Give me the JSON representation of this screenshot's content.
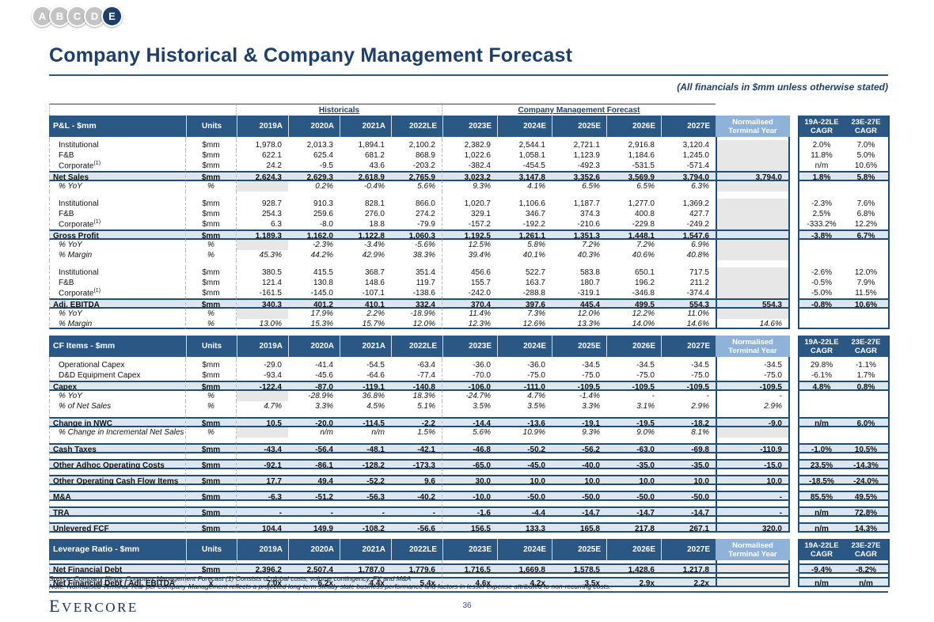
{
  "badges": {
    "items": [
      "A",
      "B",
      "C",
      "D",
      "E"
    ],
    "active": "E"
  },
  "page": {
    "title": "Company Historical & Company Management Forecast",
    "subtitle": "(All financials in $mm unless otherwise stated)",
    "source_note": "Source: Company filings, Company Management Forecast (1) Consists of global costs, volume contingency, FX and M&A",
    "note": "Note: Normalised Terminal Year per Company Management reflects a projected long-term steady state business performance and factors in lesser expense attributed to non-recurring costs.",
    "logo_text": "Evercore",
    "page_number": "36"
  },
  "colors": {
    "header_navy": "#2A5784",
    "border_navy": "#1F4E79",
    "title_navy": "#1C3F6E",
    "subtotal_blue": "#DCE6F1",
    "terminal_year_header_blue": "#8FB2D9",
    "empty_cell_gray": "#E7E7E7"
  },
  "table": {
    "group_headers": {
      "historicals": "Historicals",
      "forecast": "Company Management Forecast"
    },
    "year_columns": [
      "2019A",
      "2020A",
      "2021A",
      "2022LE",
      "2023E",
      "2024E",
      "2025E",
      "2026E",
      "2027E"
    ],
    "units_header": "Units",
    "ty_header": "Normalised\nTerminal Year",
    "cagr_headers": [
      "19A-22LE\nCAGR",
      "23E-27E\nCAGR"
    ],
    "sections": [
      {
        "title": "P&L - $mm",
        "rows": [
          {
            "label": "Institutional",
            "units": "$mm",
            "style": "detail",
            "gap": 4,
            "values": [
              "1,978.0",
              "2,013.3",
              "1,894.1",
              "2,100.2",
              "2,382.9",
              "2,544.1",
              "2,721.1",
              "2,916.8",
              "3,120.4"
            ],
            "ty": "",
            "ty_gray": true,
            "cagr": [
              "2.0%",
              "7.0%"
            ]
          },
          {
            "label": "F&B",
            "units": "$mm",
            "style": "detail",
            "values": [
              "622.1",
              "625.4",
              "681.2",
              "868.9",
              "1,022.6",
              "1,058.1",
              "1,123.9",
              "1,184.6",
              "1,245.0"
            ],
            "ty": "",
            "ty_gray": true,
            "cagr": [
              "11.8%",
              "5.0%"
            ]
          },
          {
            "label": "Corporate",
            "sup": "(1)",
            "units": "$mm",
            "style": "detail",
            "values": [
              "24.2",
              "-9.5",
              "43.6",
              "-203.2",
              "-382.4",
              "-454.5",
              "-492.3",
              "-531.5",
              "-571.4"
            ],
            "ty": "",
            "ty_gray": true,
            "cagr": [
              "n/m",
              "10.6%"
            ]
          },
          {
            "label": "Net Sales",
            "units": "$mm",
            "style": "total",
            "values": [
              "2,624.3",
              "2,629.3",
              "2,618.9",
              "2,765.9",
              "3,023.2",
              "3,147.8",
              "3,352.6",
              "3,569.9",
              "3,794.0"
            ],
            "ty": "3,794.0",
            "cagr": [
              "1.8%",
              "5.8%"
            ]
          },
          {
            "label": "% YoY",
            "units": "%",
            "style": "pct",
            "values": [
              "",
              "0.2%",
              "-0.4%",
              "5.6%",
              "9.3%",
              "4.1%",
              "6.5%",
              "6.5%",
              "6.3%"
            ],
            "ty": "",
            "ty_gray": true,
            "cagr": [
              "",
              ""
            ]
          },
          {
            "label": "Institutional",
            "units": "$mm",
            "style": "detail",
            "gap": 9,
            "values": [
              "928.7",
              "910.3",
              "828.1",
              "866.0",
              "1,020.7",
              "1,106.6",
              "1,187.7",
              "1,277.0",
              "1,369.2"
            ],
            "ty": "",
            "ty_gray": true,
            "cagr": [
              "-2.3%",
              "7.6%"
            ]
          },
          {
            "label": "F&B",
            "units": "$mm",
            "style": "detail",
            "values": [
              "254.3",
              "259.6",
              "276.0",
              "274.2",
              "329.1",
              "346.7",
              "374.3",
              "400.8",
              "427.7"
            ],
            "ty": "",
            "ty_gray": true,
            "cagr": [
              "2.5%",
              "6.8%"
            ]
          },
          {
            "label": "Corporate",
            "sup": "(1)",
            "units": "$mm",
            "style": "detail",
            "values": [
              "6.3",
              "-8.0",
              "18.8",
              "-79.9",
              "-157.2",
              "-192.2",
              "-210.6",
              "-229.8",
              "-249.2"
            ],
            "ty": "",
            "ty_gray": true,
            "cagr": [
              "-333.2%",
              "12.2%"
            ]
          },
          {
            "label": "Gross Profit",
            "units": "$mm",
            "style": "total",
            "values": [
              "1,189.3",
              "1,162.0",
              "1,122.8",
              "1,060.3",
              "1,192.5",
              "1,261.1",
              "1,351.3",
              "1,448.1",
              "1,547.6"
            ],
            "ty": "",
            "cagr": [
              "-3.8%",
              "6.7%"
            ]
          },
          {
            "label": "% YoY",
            "units": "%",
            "style": "pct",
            "values": [
              "",
              "-2.3%",
              "-3.4%",
              "-5.6%",
              "12.5%",
              "5.8%",
              "7.2%",
              "7.2%",
              "6.9%"
            ],
            "ty": "",
            "ty_gray": true,
            "cagr": [
              "",
              ""
            ]
          },
          {
            "label": "% Margin",
            "units": "%",
            "style": "pct",
            "values": [
              "45.3%",
              "44.2%",
              "42.9%",
              "38.3%",
              "39.4%",
              "40.1%",
              "40.3%",
              "40.6%",
              "40.8%"
            ],
            "ty": "",
            "ty_gray": true,
            "cagr": [
              "",
              ""
            ]
          },
          {
            "label": "Institutional",
            "units": "$mm",
            "style": "detail",
            "gap": 9,
            "values": [
              "380.5",
              "415.5",
              "368.7",
              "351.4",
              "456.6",
              "522.7",
              "583.8",
              "650.1",
              "717.5"
            ],
            "ty": "",
            "ty_gray": true,
            "cagr": [
              "-2.6%",
              "12.0%"
            ]
          },
          {
            "label": "F&B",
            "units": "$mm",
            "style": "detail",
            "values": [
              "121.4",
              "130.8",
              "148.6",
              "119.7",
              "155.7",
              "163.7",
              "180.7",
              "196.2",
              "211.2"
            ],
            "ty": "",
            "ty_gray": true,
            "cagr": [
              "-0.5%",
              "7.9%"
            ]
          },
          {
            "label": "Corporate",
            "sup": "(1)",
            "units": "$mm",
            "style": "detail",
            "values": [
              "-161.5",
              "-145.0",
              "-107.1",
              "-138.6",
              "-242.0",
              "-288.8",
              "-319.1",
              "-346.8",
              "-374.4"
            ],
            "ty": "",
            "ty_gray": true,
            "cagr": [
              "-5.0%",
              "11.5%"
            ]
          },
          {
            "label": "Adj. EBITDA",
            "units": "$mm",
            "style": "total",
            "values": [
              "340.3",
              "401.2",
              "410.1",
              "332.4",
              "370.4",
              "397.6",
              "445.4",
              "499.5",
              "554.3"
            ],
            "ty": "554.3",
            "cagr": [
              "-0.8%",
              "10.6%"
            ]
          },
          {
            "label": "% YoY",
            "units": "%",
            "style": "pct",
            "values": [
              "",
              "17.9%",
              "2.2%",
              "-18.9%",
              "11.4%",
              "7.3%",
              "12.0%",
              "12.2%",
              "11.0%"
            ],
            "ty": "",
            "ty_gray": true,
            "cagr": [
              "",
              ""
            ]
          },
          {
            "label": "% Margin",
            "units": "%",
            "style": "pct",
            "section_end": true,
            "values": [
              "13.0%",
              "15.3%",
              "15.7%",
              "12.0%",
              "12.3%",
              "12.6%",
              "13.3%",
              "14.0%",
              "14.6%"
            ],
            "ty": "14.6%",
            "cagr": [
              "",
              ""
            ]
          }
        ]
      },
      {
        "title": "CF Items - $mm",
        "rows": [
          {
            "label": "Operational Capex",
            "units": "$mm",
            "style": "detail",
            "gap": 4,
            "values": [
              "-29.0",
              "-41.4",
              "-54.5",
              "-63.4",
              "-36.0",
              "-36.0",
              "-34.5",
              "-34.5",
              "-34.5"
            ],
            "ty": "-34.5",
            "cagr": [
              "29.8%",
              "-1.1%"
            ]
          },
          {
            "label": "D&D Equipment Capex",
            "units": "$mm",
            "style": "detail",
            "values": [
              "-93.4",
              "-45.6",
              "-64.6",
              "-77.4",
              "-70.0",
              "-75.0",
              "-75.0",
              "-75.0",
              "-75.0"
            ],
            "ty": "-75.0",
            "cagr": [
              "-6.1%",
              "1.7%"
            ]
          },
          {
            "label": "Capex",
            "units": "$mm",
            "style": "total",
            "values": [
              "-122.4",
              "-87.0",
              "-119.1",
              "-140.8",
              "-106.0",
              "-111.0",
              "-109.5",
              "-109.5",
              "-109.5"
            ],
            "ty": "-109.5",
            "cagr": [
              "4.8%",
              "0.8%"
            ]
          },
          {
            "label": "% YoY",
            "units": "%",
            "style": "pct",
            "values": [
              "",
              "-28.9%",
              "36.8%",
              "18.3%",
              "-24.7%",
              "4.7%",
              "-1.4%",
              "-",
              "-"
            ],
            "ty": "-",
            "cagr": [
              "",
              ""
            ]
          },
          {
            "label": "% of Net Sales",
            "units": "%",
            "style": "pct",
            "values": [
              "4.7%",
              "3.3%",
              "4.5%",
              "5.1%",
              "3.5%",
              "3.5%",
              "3.3%",
              "3.1%",
              "2.9%"
            ],
            "ty": "2.9%",
            "cagr": [
              "",
              ""
            ]
          },
          {
            "label": "Change in NWC",
            "units": "$mm",
            "style": "total",
            "gap": 7,
            "values": [
              "10.5",
              "-20.0",
              "-114.5",
              "-2.2",
              "-14.4",
              "-13.6",
              "-19.1",
              "-19.5",
              "-18.2"
            ],
            "ty": "-9.0",
            "cagr": [
              "n/m",
              "6.0%"
            ]
          },
          {
            "label": "% Change in Incremental Net Sales",
            "units": "%",
            "style": "pct",
            "values": [
              "",
              "n/m",
              "n/m",
              "1.5%",
              "5.6%",
              "10.9%",
              "9.3%",
              "9.0%",
              "8.1%"
            ],
            "ty": "",
            "ty_gray": true,
            "cagr": [
              "",
              ""
            ]
          },
          {
            "label": "Cash Taxes",
            "units": "$mm",
            "style": "total",
            "gap": 7,
            "values": [
              "-43.4",
              "-56.4",
              "-48.1",
              "-42.1",
              "-46.8",
              "-50.2",
              "-56.2",
              "-63.0",
              "-69.8"
            ],
            "ty": "-110.9",
            "cagr": [
              "-1.0%",
              "10.5%"
            ]
          },
          {
            "label": "Other Adhoc Operating Costs",
            "units": "$mm",
            "style": "total",
            "gap": 7,
            "values": [
              "-92.1",
              "-86.1",
              "-128.2",
              "-173.3",
              "-65.0",
              "-45.0",
              "-40.0",
              "-35.0",
              "-35.0"
            ],
            "ty": "-15.0",
            "cagr": [
              "23.5%",
              "-14.3%"
            ]
          },
          {
            "label": "Other Operating Cash Flow Items",
            "units": "$mm",
            "style": "total",
            "gap": 7,
            "values": [
              "17.7",
              "49.4",
              "-52.2",
              "9.6",
              "30.0",
              "10.0",
              "10.0",
              "10.0",
              "10.0"
            ],
            "ty": "10.0",
            "cagr": [
              "-18.5%",
              "-24.0%"
            ]
          },
          {
            "label": "M&A",
            "units": "$mm",
            "style": "total",
            "gap": 7,
            "values": [
              "-6.3",
              "-51.2",
              "-56.3",
              "-40.2",
              "-10.0",
              "-50.0",
              "-50.0",
              "-50.0",
              "-50.0"
            ],
            "ty": "-",
            "cagr": [
              "85.5%",
              "49.5%"
            ]
          },
          {
            "label": "TRA",
            "units": "$mm",
            "style": "total",
            "gap": 7,
            "values": [
              "-",
              "-",
              "-",
              "-",
              "-1.6",
              "-4.4",
              "-14.7",
              "-14.7",
              "-14.7"
            ],
            "ty": "-",
            "cagr": [
              "n/m",
              "72.8%"
            ]
          },
          {
            "label": "Unlevered FCF",
            "units": "$mm",
            "style": "total",
            "gap": 7,
            "values": [
              "104.4",
              "149.9",
              "-108.2",
              "-56.6",
              "156.5",
              "133.3",
              "165.8",
              "217.8",
              "267.1"
            ],
            "ty": "320.0",
            "cagr": [
              "n/m",
              "14.3%"
            ]
          }
        ]
      },
      {
        "title": "Leverage Ratio - $mm",
        "rows": [
          {
            "label": "Net Financial Debt",
            "units": "$mm",
            "style": "total",
            "gap": 4,
            "values": [
              "2,396.2",
              "2,507.4",
              "1,787.0",
              "1,779.6",
              "1,716.5",
              "1,669.8",
              "1,578.5",
              "1,428.6",
              "1,217.8"
            ],
            "ty": "",
            "ty_gray": true,
            "cagr": [
              "-9.4%",
              "-8.2%"
            ]
          },
          {
            "label": "Net Financial Debt / Adj. EBITDA",
            "units": "x",
            "style": "total",
            "gap": 4,
            "values": [
              "7.0x",
              "6.2x",
              "4.4x",
              "5.4x",
              "4.6x",
              "4.2x",
              "3.5x",
              "2.9x",
              "2.2x"
            ],
            "ty": "",
            "ty_gray": true,
            "cagr": [
              "n/m",
              "n/m"
            ]
          }
        ]
      }
    ]
  }
}
